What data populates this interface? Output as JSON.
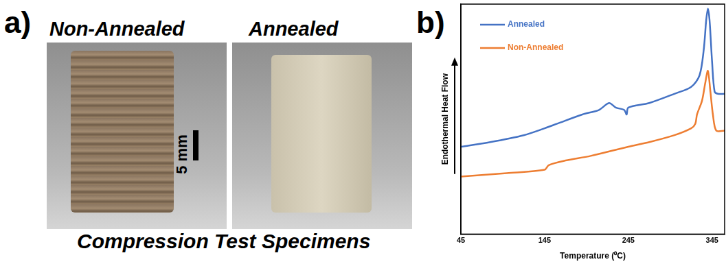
{
  "panel_a": {
    "label": "a)",
    "specimens": [
      "Non-Annealed",
      "Annealed"
    ],
    "scale_bar": "5 mm",
    "caption": "Compression Test Specimens"
  },
  "panel_b": {
    "label": "b)"
  },
  "chart_data": {
    "type": "line",
    "x_label": "Temperature (⁰C)",
    "y_label": "Endothermal Heat Flow",
    "series": [
      {
        "name": "Annealed",
        "color": "#4472c4",
        "x": [
          45,
          80,
          120,
          145,
          160,
          190,
          210,
          222,
          230,
          240,
          243,
          245,
          270,
          300,
          320,
          330,
          335,
          338,
          340,
          342,
          345,
          348,
          352,
          360
        ],
        "values": [
          38,
          40,
          43,
          46,
          48,
          52,
          54,
          57,
          55,
          54,
          52,
          55,
          57,
          61,
          64,
          69,
          80,
          93,
          98,
          93,
          75,
          62,
          61,
          61
        ]
      },
      {
        "name": "Non-Annealed",
        "color": "#ed7d31",
        "x": [
          45,
          100,
          145,
          150,
          170,
          200,
          245,
          270,
          300,
          320,
          325,
          327,
          333,
          337,
          340,
          343,
          346,
          350,
          360
        ],
        "values": [
          25,
          26.5,
          28,
          30,
          32,
          34,
          38,
          40,
          43,
          46,
          48,
          52,
          58,
          66,
          71,
          62,
          52,
          45,
          45
        ]
      }
    ],
    "xlim": [
      45,
      360
    ],
    "xticks": [
      45,
      145,
      245,
      345
    ],
    "ylim": [
      0,
      100
    ],
    "tick_labels": "x",
    "grid": false,
    "legend": "upper left"
  }
}
